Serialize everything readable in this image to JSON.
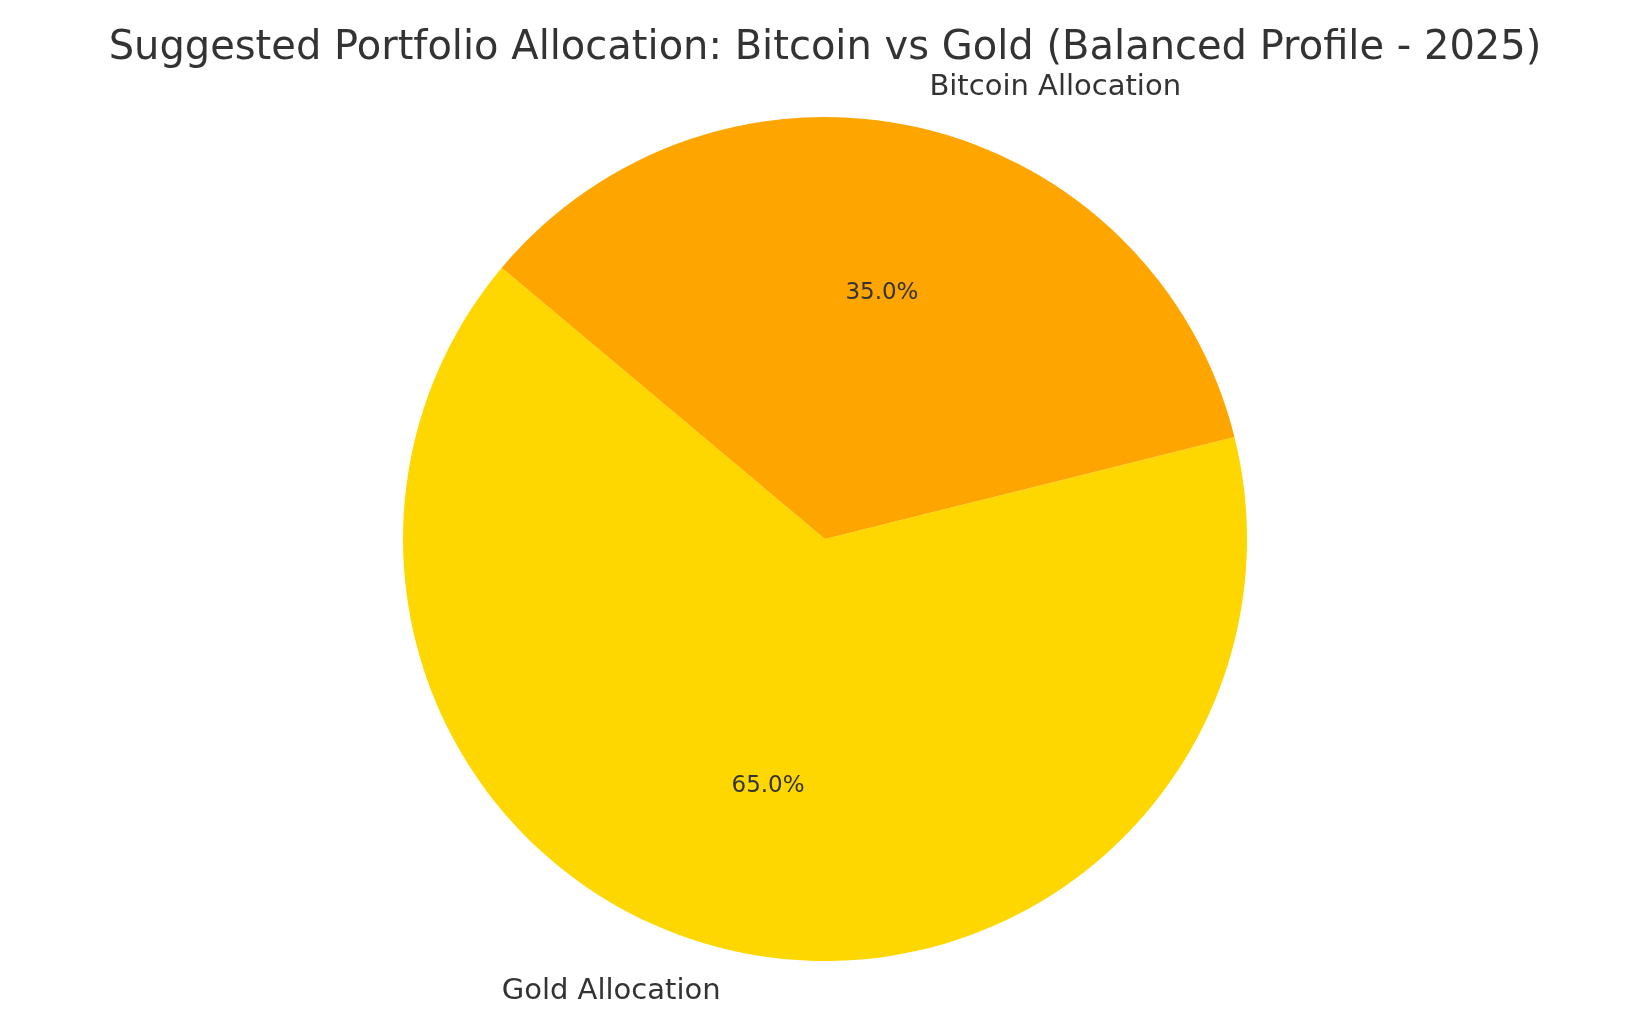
{
  "chart_data": {
    "type": "pie",
    "title": "Suggested Portfolio Allocation: Bitcoin vs Gold (Balanced Profile - 2025)",
    "categories": [
      "Gold Allocation",
      "Bitcoin Allocation"
    ],
    "values": [
      65,
      35
    ],
    "colors": [
      "#ffd700",
      "#ffa500"
    ],
    "value_labels": [
      "65.0%",
      "35.0%"
    ]
  }
}
